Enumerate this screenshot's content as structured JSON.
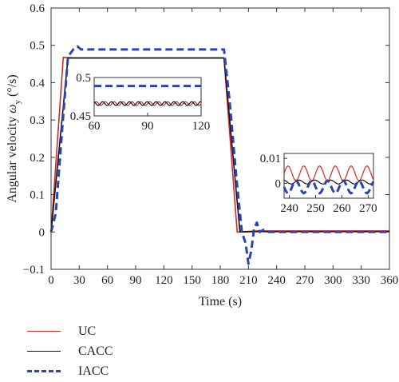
{
  "chart_data": {
    "type": "line",
    "xlabel": "Time (s)",
    "ylabel_main": "Angular velocity ",
    "ylabel_symbol": "ω",
    "ylabel_sub": "y",
    "ylabel_unit": " (°/s)",
    "xlim": [
      0,
      360
    ],
    "ylim": [
      -0.1,
      0.6
    ],
    "xticks": [
      0,
      30,
      60,
      90,
      120,
      150,
      180,
      210,
      240,
      270,
      300,
      330,
      360
    ],
    "yticks": [
      -0.1,
      0,
      0.1,
      0.2,
      0.3,
      0.4,
      0.5,
      0.6
    ],
    "ytick_labels": [
      "−0.1",
      "0",
      "0.1",
      "0.2",
      "0.3",
      "0.4",
      "0.5",
      "0.6"
    ],
    "legend_position": "below-left",
    "series": [
      {
        "name": "UC",
        "color": "#d62728",
        "style": "solid",
        "x": [
          0,
          13,
          24,
          184,
          198,
          220,
          360
        ],
        "y": [
          0,
          0.468,
          0.466,
          0.466,
          0.0,
          0.003,
          0.003
        ]
      },
      {
        "name": "CACC",
        "color": "#111111",
        "style": "solid",
        "x": [
          0,
          18,
          24,
          184,
          201,
          215,
          360
        ],
        "y": [
          0,
          0.466,
          0.466,
          0.466,
          0.0,
          0.001,
          0.001
        ]
      },
      {
        "name": "IACC",
        "color": "#2a44b0",
        "style": "dashed",
        "x": [
          0,
          5,
          12,
          18,
          24,
          28,
          32,
          38,
          184,
          190,
          197,
          203,
          207,
          210,
          213,
          216,
          219,
          222,
          226,
          232,
          360
        ],
        "y": [
          0,
          0.05,
          0.28,
          0.47,
          0.49,
          0.497,
          0.489,
          0.489,
          0.489,
          0.35,
          0.15,
          0.0,
          -0.03,
          -0.085,
          -0.05,
          0.01,
          0.025,
          0.0,
          0.006,
          0.0,
          0.0
        ]
      }
    ],
    "insets": [
      {
        "xlim": [
          60,
          120
        ],
        "ylim": [
          0.45,
          0.5
        ],
        "xticks": [
          60,
          90,
          120
        ],
        "yticks": [
          0.45,
          0.5
        ],
        "ytick_labels": [
          "0.45",
          "0.5"
        ],
        "levels": {
          "UC": 0.466,
          "CACC": 0.466,
          "IACC": 0.489
        },
        "ripple_period": 5,
        "ripple_amplitude": 0.0025
      },
      {
        "xlim": [
          238,
          272
        ],
        "ylim": [
          -0.006,
          0.012
        ],
        "xticks": [
          240,
          250,
          260,
          270
        ],
        "yticks": [
          0,
          0.01
        ],
        "ytick_labels": [
          "0",
          "0.01"
        ],
        "levels": {
          "UC": 0.004,
          "CACC": 0.0005,
          "IACC": -0.0015
        },
        "ripple_period": 6,
        "ripple_amplitude": {
          "UC": 0.003,
          "CACC": 0.0008,
          "IACC": 0.0025
        }
      }
    ]
  }
}
